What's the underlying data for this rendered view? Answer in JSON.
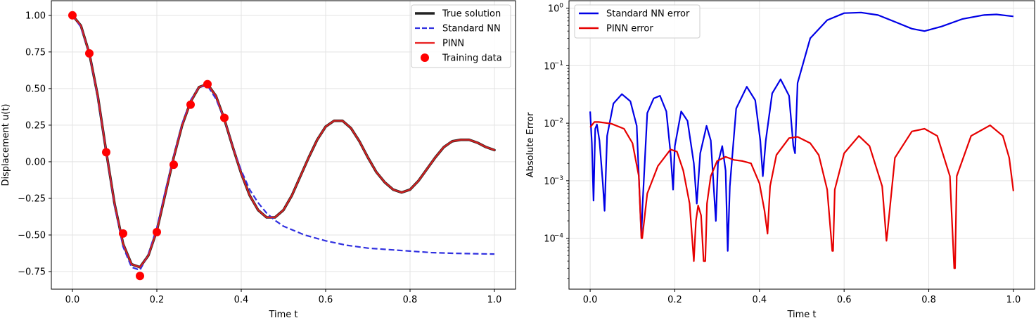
{
  "chart_data": [
    {
      "type": "line",
      "title": "",
      "xlabel": "Time t",
      "ylabel": "Displacement u(t)",
      "xlim": [
        -0.05,
        1.05
      ],
      "ylim": [
        -0.87,
        1.1
      ],
      "grid": true,
      "legend_position": "top-right",
      "xticks": [
        0.0,
        0.2,
        0.4,
        0.6,
        0.8,
        1.0
      ],
      "xtick_labels": [
        "0.0",
        "0.2",
        "0.4",
        "0.6",
        "0.8",
        "1.0"
      ],
      "yticks": [
        -0.75,
        -0.5,
        -0.25,
        0.0,
        0.25,
        0.5,
        0.75,
        1.0
      ],
      "ytick_labels": [
        "−0.75",
        "−0.50",
        "−0.25",
        "0.00",
        "0.25",
        "0.50",
        "0.75",
        "1.00"
      ],
      "series": [
        {
          "name": "True solution",
          "style": "solid",
          "color": "#222222",
          "x": [
            0,
            0.02,
            0.04,
            0.06,
            0.08,
            0.1,
            0.12,
            0.14,
            0.16,
            0.18,
            0.2,
            0.22,
            0.24,
            0.26,
            0.28,
            0.3,
            0.32,
            0.34,
            0.36,
            0.38,
            0.4,
            0.42,
            0.44,
            0.46,
            0.48,
            0.5,
            0.52,
            0.54,
            0.56,
            0.58,
            0.6,
            0.62,
            0.64,
            0.66,
            0.68,
            0.7,
            0.72,
            0.74,
            0.76,
            0.78,
            0.8,
            0.82,
            0.84,
            0.86,
            0.88,
            0.9,
            0.92,
            0.94,
            0.96,
            0.98,
            1.0
          ],
          "values": [
            1.0,
            0.93,
            0.74,
            0.45,
            0.07,
            -0.29,
            -0.56,
            -0.7,
            -0.72,
            -0.64,
            -0.47,
            -0.22,
            0.03,
            0.25,
            0.41,
            0.51,
            0.53,
            0.45,
            0.29,
            0.1,
            -0.08,
            -0.23,
            -0.33,
            -0.38,
            -0.38,
            -0.33,
            -0.23,
            -0.1,
            0.03,
            0.15,
            0.24,
            0.28,
            0.28,
            0.23,
            0.14,
            0.03,
            -0.07,
            -0.14,
            -0.19,
            -0.21,
            -0.19,
            -0.13,
            -0.05,
            0.03,
            0.1,
            0.14,
            0.15,
            0.15,
            0.13,
            0.1,
            0.08
          ]
        },
        {
          "name": "Standard NN",
          "style": "dashed",
          "color": "#3030e0",
          "x": [
            0,
            0.02,
            0.04,
            0.06,
            0.08,
            0.1,
            0.12,
            0.14,
            0.16,
            0.18,
            0.2,
            0.22,
            0.24,
            0.26,
            0.28,
            0.3,
            0.32,
            0.34,
            0.36,
            0.38,
            0.4,
            0.42,
            0.44,
            0.46,
            0.48,
            0.5,
            0.55,
            0.6,
            0.65,
            0.7,
            0.75,
            0.8,
            0.85,
            0.9,
            0.95,
            1.0
          ],
          "values": [
            1.0,
            0.92,
            0.74,
            0.44,
            0.07,
            -0.3,
            -0.58,
            -0.72,
            -0.74,
            -0.63,
            -0.45,
            -0.2,
            0.04,
            0.26,
            0.42,
            0.51,
            0.52,
            0.43,
            0.29,
            0.1,
            -0.06,
            -0.19,
            -0.28,
            -0.35,
            -0.4,
            -0.44,
            -0.5,
            -0.54,
            -0.57,
            -0.59,
            -0.6,
            -0.61,
            -0.62,
            -0.625,
            -0.628,
            -0.63
          ]
        },
        {
          "name": "PINN",
          "style": "solid",
          "color": "#e82020",
          "x": [
            0,
            0.02,
            0.04,
            0.06,
            0.08,
            0.1,
            0.12,
            0.14,
            0.16,
            0.18,
            0.2,
            0.22,
            0.24,
            0.26,
            0.28,
            0.3,
            0.32,
            0.34,
            0.36,
            0.38,
            0.4,
            0.42,
            0.44,
            0.46,
            0.48,
            0.5,
            0.52,
            0.54,
            0.56,
            0.58,
            0.6,
            0.62,
            0.64,
            0.66,
            0.68,
            0.7,
            0.72,
            0.74,
            0.76,
            0.78,
            0.8,
            0.82,
            0.84,
            0.86,
            0.88,
            0.9,
            0.92,
            0.94,
            0.96,
            0.98,
            1.0
          ],
          "values": [
            1.0,
            0.93,
            0.74,
            0.45,
            0.07,
            -0.29,
            -0.56,
            -0.7,
            -0.72,
            -0.64,
            -0.47,
            -0.22,
            0.03,
            0.25,
            0.41,
            0.51,
            0.53,
            0.45,
            0.29,
            0.1,
            -0.08,
            -0.23,
            -0.33,
            -0.38,
            -0.38,
            -0.33,
            -0.23,
            -0.1,
            0.03,
            0.15,
            0.24,
            0.28,
            0.28,
            0.23,
            0.14,
            0.03,
            -0.07,
            -0.14,
            -0.19,
            -0.21,
            -0.19,
            -0.13,
            -0.05,
            0.03,
            0.1,
            0.14,
            0.15,
            0.15,
            0.13,
            0.1,
            0.08
          ]
        },
        {
          "name": "Training data",
          "style": "markers",
          "color": "#ff0000",
          "x": [
            0.0,
            0.04,
            0.08,
            0.12,
            0.16,
            0.2,
            0.24,
            0.28,
            0.32,
            0.36
          ],
          "values": [
            1.0,
            0.74,
            0.065,
            -0.49,
            -0.78,
            -0.48,
            -0.02,
            0.39,
            0.53,
            0.3
          ]
        }
      ]
    },
    {
      "type": "line",
      "title": "",
      "xlabel": "Time t",
      "ylabel": "Absolute Error",
      "xscale": "linear",
      "yscale": "log",
      "xlim": [
        -0.05,
        1.05
      ],
      "ylim": [
        1.3e-05,
        1.35
      ],
      "grid": true,
      "legend_position": "top-left",
      "xticks": [
        0.0,
        0.2,
        0.4,
        0.6,
        0.8,
        1.0
      ],
      "xtick_labels": [
        "0.0",
        "0.2",
        "0.4",
        "0.6",
        "0.8",
        "1.0"
      ],
      "yticks": [
        0.0001,
        0.001,
        0.01,
        0.1,
        1
      ],
      "ytick_mantissa": "10",
      "ytick_exponents": [
        "−4",
        "−3",
        "−2",
        "−1",
        "0"
      ],
      "series": [
        {
          "name": "Standard NN error",
          "color": "#0000e6",
          "x": [
            0.0,
            0.004,
            0.008,
            0.012,
            0.016,
            0.022,
            0.03,
            0.034,
            0.04,
            0.055,
            0.075,
            0.095,
            0.11,
            0.121,
            0.124,
            0.135,
            0.15,
            0.165,
            0.18,
            0.19,
            0.196,
            0.2,
            0.215,
            0.23,
            0.245,
            0.252,
            0.26,
            0.275,
            0.285,
            0.297,
            0.302,
            0.312,
            0.32,
            0.325,
            0.33,
            0.345,
            0.37,
            0.39,
            0.402,
            0.408,
            0.415,
            0.43,
            0.45,
            0.47,
            0.48,
            0.484,
            0.49,
            0.52,
            0.56,
            0.6,
            0.64,
            0.68,
            0.72,
            0.76,
            0.79,
            0.83,
            0.88,
            0.93,
            0.96,
            1.0
          ],
          "values": [
            0.016,
            0.0045,
            0.00045,
            0.008,
            0.0095,
            0.005,
            0.0009,
            0.0003,
            0.006,
            0.022,
            0.032,
            0.024,
            0.009,
            0.00011,
            0.0004,
            0.015,
            0.027,
            0.03,
            0.016,
            0.003,
            0.0007,
            0.004,
            0.016,
            0.011,
            0.002,
            0.0004,
            0.003,
            0.009,
            0.005,
            0.0002,
            0.002,
            0.004,
            0.0015,
            6e-05,
            0.0008,
            0.018,
            0.043,
            0.025,
            0.005,
            0.0012,
            0.005,
            0.033,
            0.058,
            0.03,
            0.004,
            0.003,
            0.05,
            0.3,
            0.62,
            0.82,
            0.84,
            0.76,
            0.58,
            0.44,
            0.4,
            0.48,
            0.65,
            0.76,
            0.78,
            0.72
          ]
        },
        {
          "name": "PINN error",
          "color": "#e60000",
          "x": [
            0.0,
            0.01,
            0.02,
            0.05,
            0.08,
            0.1,
            0.115,
            0.121,
            0.123,
            0.135,
            0.16,
            0.19,
            0.205,
            0.22,
            0.235,
            0.245,
            0.25,
            0.255,
            0.262,
            0.268,
            0.272,
            0.276,
            0.285,
            0.3,
            0.32,
            0.34,
            0.36,
            0.38,
            0.4,
            0.412,
            0.419,
            0.425,
            0.44,
            0.47,
            0.49,
            0.52,
            0.54,
            0.56,
            0.572,
            0.574,
            0.578,
            0.6,
            0.635,
            0.66,
            0.69,
            0.7,
            0.702,
            0.72,
            0.76,
            0.79,
            0.82,
            0.85,
            0.86,
            0.862,
            0.866,
            0.9,
            0.945,
            0.975,
            0.99,
            1.0
          ],
          "values": [
            0.0085,
            0.0105,
            0.0105,
            0.0098,
            0.008,
            0.0045,
            0.0012,
            0.0001,
            0.0001,
            0.0006,
            0.0018,
            0.0035,
            0.0032,
            0.0015,
            0.0004,
            4e-05,
            0.0002,
            0.00037,
            0.00025,
            4e-05,
            4e-05,
            0.0004,
            0.0012,
            0.0022,
            0.0026,
            0.0023,
            0.0022,
            0.002,
            0.0009,
            0.0003,
            0.00012,
            0.0008,
            0.0028,
            0.0055,
            0.0058,
            0.0045,
            0.0028,
            0.0007,
            6e-05,
            6e-05,
            0.0007,
            0.003,
            0.006,
            0.004,
            0.0008,
            9e-05,
            0.00012,
            0.0025,
            0.0072,
            0.008,
            0.006,
            0.0012,
            3e-05,
            3e-05,
            0.0012,
            0.006,
            0.0092,
            0.006,
            0.0025,
            0.00066
          ]
        }
      ]
    }
  ]
}
